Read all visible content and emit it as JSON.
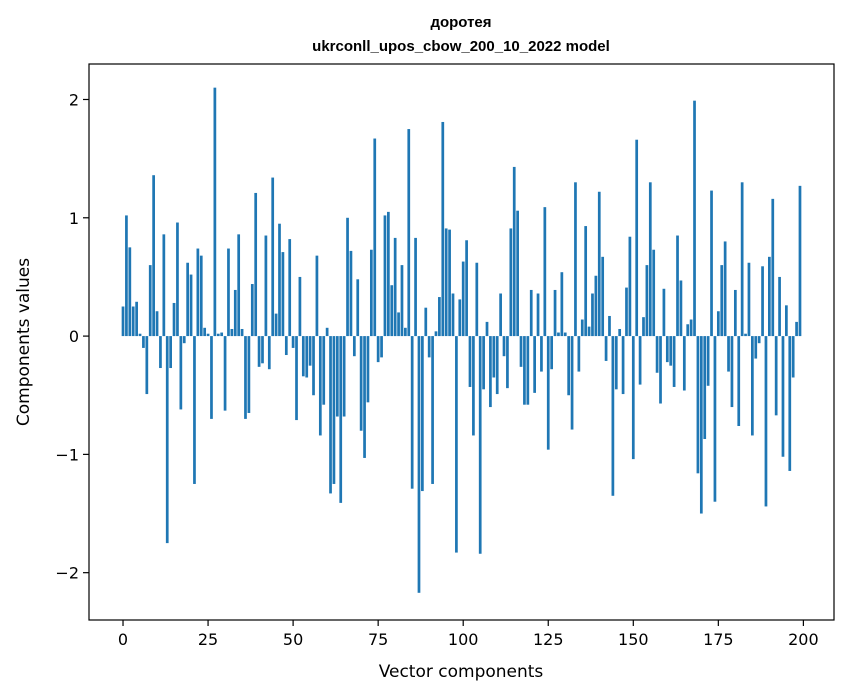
{
  "chart_data": {
    "type": "bar",
    "title_line1": "доротея",
    "title_line2": "ukrconll_upos_cbow_200_10_2022 model",
    "xlabel": "Vector components",
    "ylabel": "Components values",
    "xlim": [
      -10,
      209
    ],
    "ylim": [
      -2.4,
      2.3
    ],
    "xticks": [
      0,
      25,
      50,
      75,
      100,
      125,
      150,
      175,
      200
    ],
    "yticks": [
      -2,
      -1,
      0,
      1,
      2
    ],
    "ytick_labels": [
      "−2",
      "−1",
      "0",
      "1",
      "2"
    ],
    "bar_color": "#1f77b4",
    "grid": false,
    "values": [
      0.25,
      1.02,
      0.75,
      0.25,
      0.29,
      0.02,
      -0.1,
      -0.49,
      0.6,
      1.36,
      0.21,
      -0.27,
      0.86,
      -1.75,
      -0.27,
      0.28,
      0.96,
      -0.62,
      -0.06,
      0.62,
      0.52,
      -1.25,
      0.74,
      0.68,
      0.07,
      0.02,
      -0.7,
      2.1,
      0.02,
      0.03,
      -0.63,
      0.74,
      0.06,
      0.39,
      0.86,
      0.06,
      -0.7,
      -0.65,
      0.44,
      1.21,
      -0.26,
      -0.23,
      0.85,
      -0.28,
      1.34,
      0.19,
      0.95,
      0.71,
      -0.16,
      0.82,
      -0.1,
      -0.71,
      0.5,
      -0.34,
      -0.35,
      -0.25,
      -0.5,
      0.68,
      -0.84,
      -0.58,
      0.07,
      -1.33,
      -1.25,
      -0.68,
      -1.41,
      -0.68,
      1.0,
      0.72,
      -0.17,
      0.48,
      -0.8,
      -1.03,
      -0.56,
      0.73,
      1.67,
      -0.22,
      -0.18,
      1.02,
      1.05,
      0.43,
      0.83,
      0.2,
      0.6,
      0.07,
      1.75,
      -1.29,
      0.83,
      -2.17,
      -1.31,
      0.24,
      -0.18,
      -1.25,
      0.04,
      0.33,
      1.81,
      0.91,
      0.9,
      0.36,
      -1.83,
      0.31,
      0.63,
      0.81,
      -0.43,
      -0.84,
      0.62,
      -1.84,
      -0.45,
      0.12,
      -0.6,
      -0.35,
      -0.49,
      0.36,
      -0.17,
      -0.44,
      0.91,
      1.43,
      1.06,
      -0.26,
      -0.58,
      -0.58,
      0.39,
      -0.48,
      0.36,
      -0.3,
      1.09,
      -0.96,
      -0.28,
      0.39,
      0.03,
      0.54,
      0.03,
      -0.5,
      -0.79,
      1.3,
      -0.3,
      0.14,
      0.93,
      0.08,
      0.36,
      0.51,
      1.22,
      0.67,
      -0.21,
      0.17,
      -1.35,
      -0.45,
      0.06,
      -0.49,
      0.41,
      0.84,
      -1.04,
      1.66,
      -0.41,
      0.16,
      0.6,
      1.3,
      0.73,
      -0.31,
      -0.57,
      0.4,
      -0.22,
      -0.25,
      -0.43,
      0.85,
      0.47,
      -0.46,
      0.1,
      0.14,
      1.99,
      -1.16,
      -1.5,
      -0.87,
      -0.42,
      1.23,
      -1.4,
      0.21,
      0.6,
      0.8,
      -0.3,
      -0.6,
      0.39,
      -0.76,
      1.3,
      0.02,
      0.62,
      -0.84,
      -0.19,
      -0.06,
      0.59,
      -1.44,
      0.67,
      1.16,
      -0.67,
      0.5,
      -1.02,
      0.26,
      -1.14,
      -0.35,
      0.12,
      1.27
    ]
  }
}
